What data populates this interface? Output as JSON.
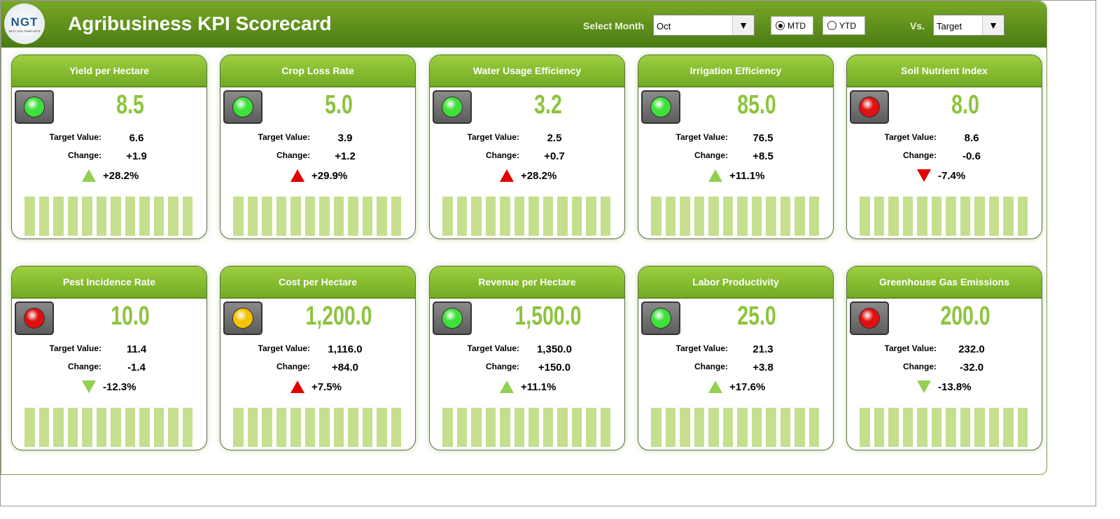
{
  "header": {
    "logo_text": "NGT",
    "logo_sub": "NEXT GEN TEMPLATES",
    "title": "Agribusiness KPI Scorecard",
    "month_label": "Select Month",
    "month_value": "Oct",
    "mtd_label": "MTD",
    "ytd_label": "YTD",
    "mode_selected": "MTD",
    "vs_label": "Vs.",
    "vs_value": "Target"
  },
  "labels": {
    "target": "Target Value:",
    "change": "Change:"
  },
  "colors": {
    "good_arrow": "#92d050",
    "bad_arrow": "#e00000",
    "green_light": "#3ee03a",
    "red_light": "#e01010",
    "yellow_light": "#f5c400"
  },
  "cards": [
    {
      "title": "Yield per Hectare",
      "value": "8.5",
      "target": "6.6",
      "change": "+1.9",
      "pct": "+28.2%",
      "light": "green",
      "arrow": "up",
      "arrow_color": "good"
    },
    {
      "title": "Crop Loss Rate",
      "value": "5.0",
      "target": "3.9",
      "change": "+1.2",
      "pct": "+29.9%",
      "light": "green",
      "arrow": "up",
      "arrow_color": "bad"
    },
    {
      "title": "Water Usage Efficiency",
      "value": "3.2",
      "target": "2.5",
      "change": "+0.7",
      "pct": "+28.2%",
      "light": "green",
      "arrow": "up",
      "arrow_color": "bad"
    },
    {
      "title": "Irrigation Efficiency",
      "value": "85.0",
      "target": "76.5",
      "change": "+8.5",
      "pct": "+11.1%",
      "light": "green",
      "arrow": "up",
      "arrow_color": "good"
    },
    {
      "title": "Soil Nutrient Index",
      "value": "8.0",
      "target": "8.6",
      "change": "-0.6",
      "pct": "-7.4%",
      "light": "red",
      "arrow": "down",
      "arrow_color": "bad"
    },
    {
      "title": "Pest Incidence Rate",
      "value": "10.0",
      "target": "11.4",
      "change": "-1.4",
      "pct": "-12.3%",
      "light": "red",
      "arrow": "down",
      "arrow_color": "good"
    },
    {
      "title": "Cost per Hectare",
      "value": "1,200.0",
      "target": "1,116.0",
      "change": "+84.0",
      "pct": "+7.5%",
      "light": "yellow",
      "arrow": "up",
      "arrow_color": "bad"
    },
    {
      "title": "Revenue per Hectare",
      "value": "1,500.0",
      "target": "1,350.0",
      "change": "+150.0",
      "pct": "+11.1%",
      "light": "green",
      "arrow": "up",
      "arrow_color": "good"
    },
    {
      "title": "Labor Productivity",
      "value": "25.0",
      "target": "21.3",
      "change": "+3.8",
      "pct": "+17.6%",
      "light": "green",
      "arrow": "up",
      "arrow_color": "good"
    },
    {
      "title": "Greenhouse Gas Emissions",
      "value": "200.0",
      "target": "232.0",
      "change": "-32.0",
      "pct": "-13.8%",
      "light": "red",
      "arrow": "down",
      "arrow_color": "good"
    }
  ]
}
